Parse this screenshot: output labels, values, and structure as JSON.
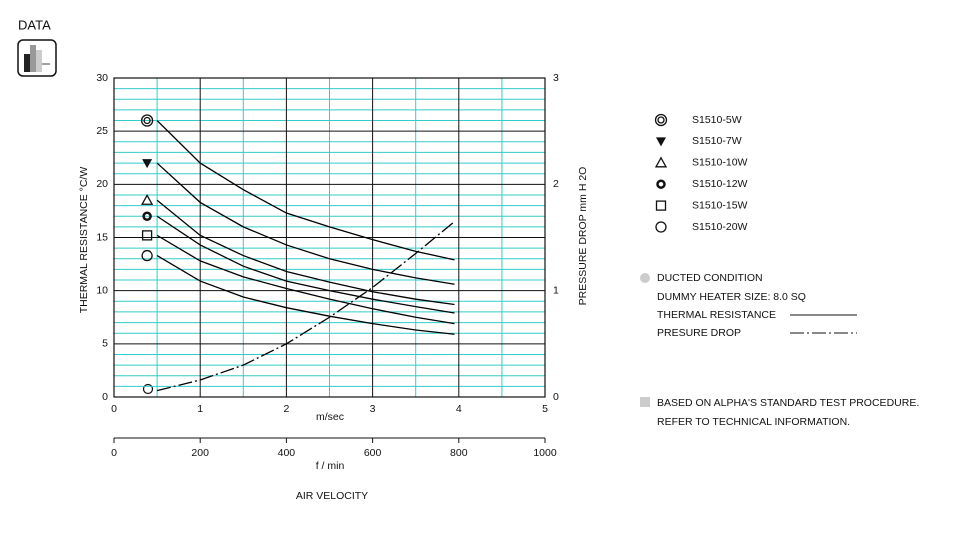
{
  "header": {
    "label": "DATA"
  },
  "chart_data": {
    "type": "line",
    "x": [
      0.5,
      1,
      1.5,
      2,
      2.5,
      3,
      3.5,
      3.95
    ],
    "series": [
      {
        "name": "S1510-5W",
        "color": "#000000",
        "marker": "double-circle",
        "values": [
          26,
          22.0,
          19.5,
          17.3,
          16.0,
          14.8,
          13.7,
          12.9
        ]
      },
      {
        "name": "S1510-7W",
        "color": "#000000",
        "marker": "triangle-down",
        "values": [
          22,
          18.3,
          16.0,
          14.3,
          13.0,
          12.0,
          11.2,
          10.6
        ]
      },
      {
        "name": "S1510-10W",
        "color": "#000000",
        "marker": "triangle",
        "values": [
          18.5,
          15.2,
          13.3,
          11.8,
          10.8,
          9.9,
          9.2,
          8.7
        ]
      },
      {
        "name": "S1510-12W",
        "color": "#000000",
        "marker": "bold-circle",
        "values": [
          17,
          14.3,
          12.3,
          10.9,
          10.0,
          9.2,
          8.5,
          7.9
        ]
      },
      {
        "name": "S1510-15W",
        "color": "#000000",
        "marker": "square",
        "values": [
          15.2,
          12.8,
          11.3,
          10.2,
          9.2,
          8.3,
          7.5,
          6.9
        ]
      },
      {
        "name": "S1510-20W",
        "color": "#000000",
        "marker": "circle",
        "values": [
          13.3,
          10.9,
          9.4,
          8.4,
          7.6,
          6.9,
          6.3,
          5.9
        ]
      },
      {
        "name": "PRESURE DROP",
        "color": "#000000",
        "axis": "y2",
        "dash": "dashdot",
        "values": [
          0.06,
          0.16,
          0.3,
          0.5,
          0.75,
          1.03,
          1.35,
          1.65
        ]
      }
    ],
    "xlim": [
      0,
      5
    ],
    "xticks": [
      0,
      1,
      2,
      3,
      4,
      5
    ],
    "x_minor_ticks": [
      0.5,
      1.5,
      2.5,
      3.5,
      4.5
    ],
    "x2lim": [
      0,
      1000
    ],
    "x2ticks": [
      0,
      200,
      400,
      600,
      800,
      1000
    ],
    "ylim": [
      0,
      30
    ],
    "yticks": [
      0,
      5,
      10,
      15,
      20,
      25,
      30
    ],
    "y_minor_ticks": [
      1,
      2,
      3,
      4,
      6,
      7,
      8,
      9,
      11,
      12,
      13,
      14,
      16,
      17,
      18,
      19,
      21,
      22,
      23,
      24,
      26,
      27,
      28,
      29
    ],
    "y2lim": [
      0,
      3
    ],
    "y2ticks": [
      0,
      1,
      2,
      3
    ],
    "grid": true,
    "grid_color": "#33cccc",
    "xlabel": "m/sec",
    "x2label": "f / min",
    "axis_title": "AIR VELOCITY",
    "ylabel": "THERMAL RESISTANCE  °C/W",
    "y2label": "PRESSURE DROP   mm H 2O"
  },
  "notes": {
    "condition": "DUCTED CONDITION",
    "heater": "DUMMY HEATER SIZE: 8.0 SQ",
    "thermal": "THERMAL RESISTANCE",
    "procedure": "BASED ON ALPHA'S STANDARD TEST PROCEDURE.",
    "refer": "REFER TO TECHNICAL INFORMATION."
  }
}
